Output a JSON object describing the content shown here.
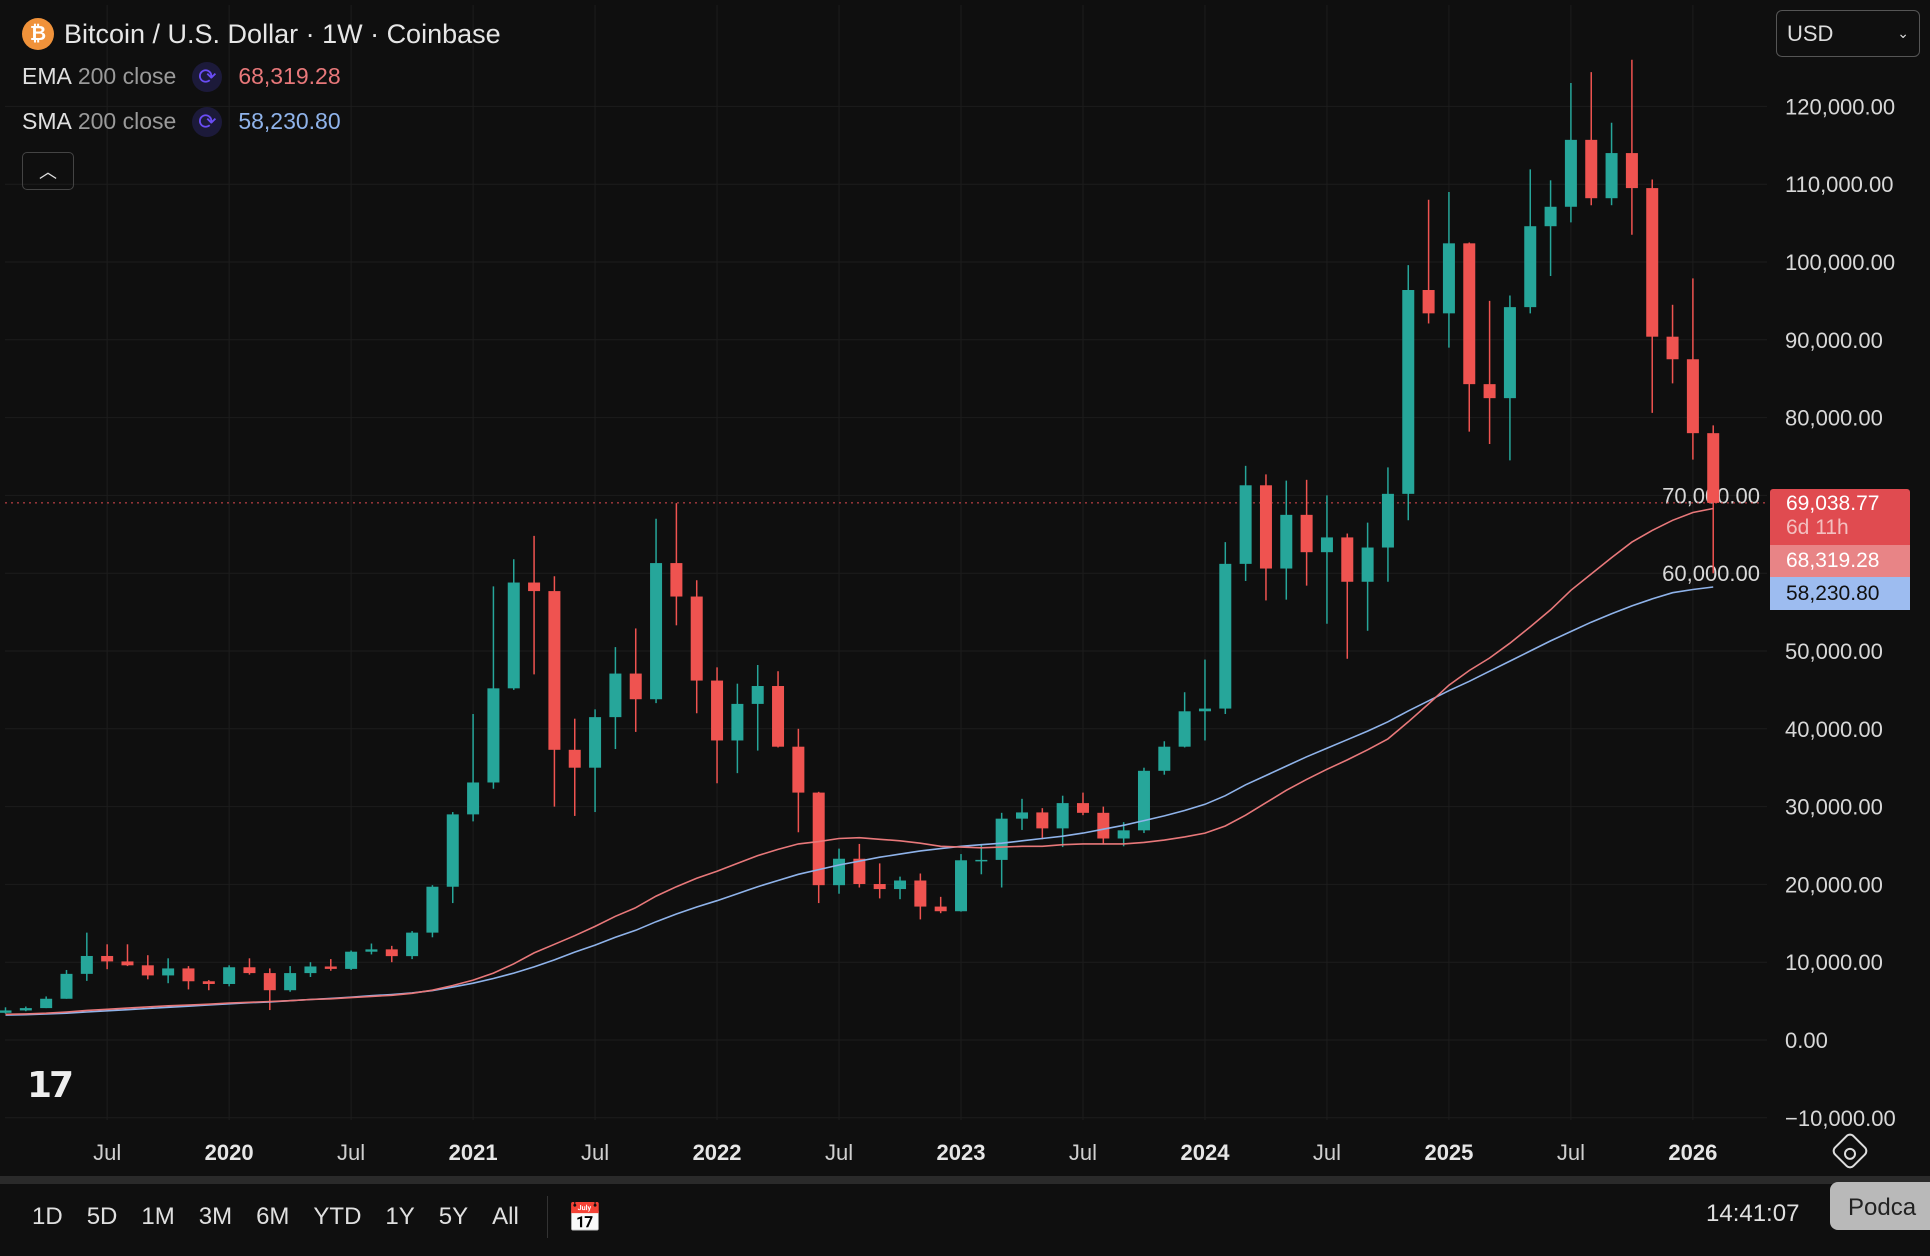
{
  "header": {
    "symbol_icon": "₿",
    "title": "Bitcoin / U.S. Dollar · 1W · Coinbase",
    "currency": "USD"
  },
  "indicators": [
    {
      "name": "EMA",
      "params": "200 close",
      "value": "68,319.28",
      "color": "#e8787a"
    },
    {
      "name": "SMA",
      "params": "200 close",
      "value": "58,230.80",
      "color": "#8fb3ea"
    }
  ],
  "price_labels": {
    "last": "69,038.77",
    "countdown": "6d 11h",
    "ema": "68,319.28",
    "sma": "58,230.80"
  },
  "toolbar": {
    "ranges": [
      "1D",
      "5D",
      "1M",
      "3M",
      "6M",
      "YTD",
      "1Y",
      "5Y",
      "All"
    ],
    "time": "14:41:07",
    "tooltip": "Podca"
  },
  "logo": "TV",
  "chart_data": {
    "type": "candlestick",
    "interval": "monthly approximation of weekly candles",
    "start": "2019-02",
    "ylim": [
      -10000,
      130000
    ],
    "yticks": [
      120000,
      110000,
      100000,
      90000,
      80000,
      70000,
      60000,
      50000,
      40000,
      30000,
      20000,
      10000,
      0,
      -10000
    ],
    "ytick_labels": [
      "120,000.00",
      "110,000.00",
      "100,000.00",
      "90,000.00",
      "80,000.00",
      "70,000.00",
      "60,000.00",
      "50,000.00",
      "40,000.00",
      "30,000.00",
      "20,000.00",
      "10,000.00",
      "0.00",
      "−10,000.00"
    ],
    "xticks": [
      {
        "label": "Jul",
        "m": 5
      },
      {
        "label": "2020",
        "m": 11,
        "bold": true
      },
      {
        "label": "Jul",
        "m": 17
      },
      {
        "label": "2021",
        "m": 23,
        "bold": true
      },
      {
        "label": "Jul",
        "m": 29
      },
      {
        "label": "2022",
        "m": 35,
        "bold": true
      },
      {
        "label": "Jul",
        "m": 41
      },
      {
        "label": "2023",
        "m": 47,
        "bold": true
      },
      {
        "label": "Jul",
        "m": 53
      },
      {
        "label": "2024",
        "m": 59,
        "bold": true
      },
      {
        "label": "Jul",
        "m": 65
      },
      {
        "label": "2025",
        "m": 71,
        "bold": true
      },
      {
        "label": "Jul",
        "m": 77
      },
      {
        "label": "2026",
        "m": 83,
        "bold": true
      }
    ],
    "close": [
      3800,
      4100,
      5300,
      8500,
      10800,
      10100,
      9600,
      8300,
      9200,
      7550,
      7200,
      9350,
      8600,
      6400,
      8600,
      9450,
      9140,
      11350,
      11650,
      10780,
      13800,
      19700,
      29000,
      33100,
      45200,
      58800,
      57700,
      37300,
      35000,
      41500,
      47100,
      43800,
      61300,
      57000,
      46200,
      38500,
      43200,
      45500,
      37700,
      31800,
      19900,
      23300,
      20050,
      19400,
      20500,
      17150,
      16550,
      23100,
      23150,
      28450,
      29250,
      27200,
      30450,
      29200,
      25900,
      26950,
      34600,
      37700,
      42250,
      42600,
      61200,
      71300,
      60600,
      67500,
      62700,
      64600,
      58900,
      63300,
      70200,
      96400,
      93400,
      102400,
      84300,
      82500,
      94200,
      104600,
      107100,
      115700,
      108200,
      114000,
      109500,
      90400,
      87500,
      78000,
      69038
    ],
    "high": [
      4200,
      4300,
      5600,
      9000,
      13800,
      12300,
      12300,
      10900,
      10500,
      9500,
      7700,
      9600,
      10500,
      9200,
      9500,
      10000,
      10400,
      11500,
      12400,
      12100,
      14000,
      19900,
      29300,
      41900,
      58300,
      61800,
      64800,
      59600,
      41300,
      42500,
      50500,
      52900,
      67000,
      69000,
      59100,
      47900,
      45800,
      48200,
      47400,
      40000,
      31900,
      24600,
      25200,
      22700,
      21000,
      21400,
      18400,
      23900,
      25200,
      29200,
      31000,
      29800,
      31400,
      31800,
      30000,
      28000,
      35000,
      38400,
      44700,
      48900,
      64000,
      73800,
      72700,
      71900,
      72000,
      70000,
      65100,
      66500,
      73600,
      99600,
      108000,
      109000,
      102500,
      95000,
      95700,
      111900,
      110500,
      123000,
      124400,
      117900,
      126000,
      110600,
      94500,
      97900,
      79000
    ],
    "low": [
      3400,
      3700,
      4100,
      5300,
      7600,
      9100,
      9500,
      7800,
      7300,
      6500,
      6400,
      6900,
      8400,
      3850,
      6200,
      8100,
      8900,
      9000,
      11000,
      10000,
      10400,
      13200,
      17600,
      28100,
      32300,
      45000,
      47000,
      30000,
      28800,
      29300,
      37400,
      39600,
      43300,
      53300,
      42000,
      33000,
      34300,
      37200,
      37600,
      26700,
      17600,
      18800,
      19600,
      18200,
      18100,
      15500,
      16300,
      16500,
      21300,
      19600,
      27000,
      25800,
      24800,
      28900,
      25200,
      24900,
      26600,
      34100,
      37600,
      38500,
      41900,
      59000,
      56500,
      56600,
      58400,
      53500,
      49000,
      52600,
      58900,
      66800,
      92100,
      89000,
      78200,
      76600,
      74500,
      93400,
      98200,
      105100,
      107300,
      107300,
      103500,
      80600,
      84400,
      74600,
      60000
    ],
    "ema200": [
      3300,
      3350,
      3450,
      3600,
      3800,
      3950,
      4100,
      4250,
      4400,
      4500,
      4600,
      4750,
      4850,
      4950,
      5050,
      5200,
      5300,
      5450,
      5600,
      5750,
      6000,
      6400,
      7000,
      7700,
      8600,
      9800,
      11200,
      12300,
      13400,
      14600,
      15900,
      17000,
      18500,
      19700,
      20800,
      21700,
      22700,
      23700,
      24500,
      25200,
      25500,
      25900,
      26000,
      25800,
      25600,
      25300,
      24900,
      24800,
      24700,
      24800,
      24900,
      24900,
      25100,
      25200,
      25200,
      25200,
      25400,
      25700,
      26100,
      26600,
      27500,
      28900,
      30500,
      32100,
      33500,
      34800,
      36000,
      37300,
      38700,
      40900,
      43200,
      45600,
      47500,
      49100,
      51000,
      53100,
      55300,
      57800,
      59900,
      62000,
      64000,
      65500,
      66800,
      67800,
      68319
    ],
    "sma200": [
      3200,
      3250,
      3350,
      3450,
      3600,
      3750,
      3900,
      4050,
      4200,
      4350,
      4500,
      4650,
      4800,
      4900,
      5050,
      5200,
      5350,
      5500,
      5700,
      5850,
      6050,
      6350,
      6800,
      7300,
      7900,
      8600,
      9400,
      10300,
      11300,
      12200,
      13200,
      14100,
      15200,
      16200,
      17100,
      17900,
      18800,
      19700,
      20500,
      21300,
      21900,
      22500,
      23000,
      23500,
      23900,
      24300,
      24600,
      24900,
      25100,
      25300,
      25600,
      25900,
      26200,
      26600,
      27100,
      27600,
      28200,
      28800,
      29500,
      30300,
      31400,
      32800,
      34000,
      35200,
      36400,
      37500,
      38600,
      39700,
      40900,
      42300,
      43600,
      44900,
      46100,
      47400,
      48700,
      50000,
      51300,
      52500,
      53700,
      54800,
      55800,
      56700,
      57500,
      57900,
      58231
    ],
    "last_price": 69038.77,
    "up_color": "#26a69a",
    "down_color": "#ef5350"
  }
}
